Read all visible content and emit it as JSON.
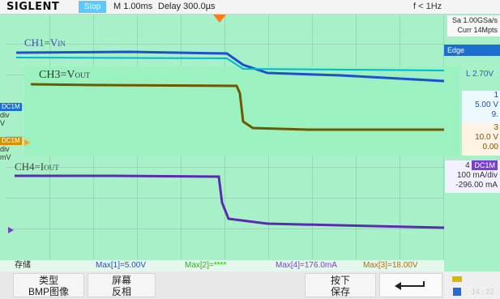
{
  "brand": "SIGLENT",
  "run_state": "Stop",
  "timebase": "M 1.00ms",
  "delay": "Delay 300.0µs",
  "frequency": "f < 1Hz",
  "sample_rate": "Sa 1.00GSa/s",
  "memory_depth": "Curr 14Mpts",
  "trigger": {
    "mode": "Edge",
    "level": "L  2.70V"
  },
  "labels": {
    "vin": "CH1=V",
    "vin_sub": "IN",
    "vout": "CH3=V",
    "vout_sub": "OUT",
    "iout": "CH4=I",
    "iout_sub": "OUT"
  },
  "left_markers": [
    {
      "tag": "DC1M",
      "line1": "div",
      "line2": "V"
    },
    {
      "tag": "DC1M",
      "line1": "div",
      "line2": "mV"
    }
  ],
  "channels": {
    "ch1": {
      "num": "1",
      "scale": "5.00 V",
      "offset": "9."
    },
    "ch3": {
      "num": "3",
      "scale": "10.0 V",
      "offset": "0.00"
    },
    "ch4": {
      "num": "4",
      "coupling": "DC1M",
      "scale": "100 mA/div",
      "offset": "-296.00 mA"
    }
  },
  "measurements": {
    "save_label": "存储",
    "max1": "Max[1]=5.00V",
    "max2": "Max[2]=****",
    "max4": "Max[4]=176.0mA",
    "max3": "Max[3]=18.00V"
  },
  "menu": {
    "type_label": "类型",
    "type_value": "BMP图像",
    "screen_label": "屏幕",
    "screen_value": "反相",
    "press_label": "按下",
    "press_value": "保存"
  },
  "clock": "14 : 22",
  "colors": {
    "ch1": "#1f4fd0",
    "ch3": "#6b5a00",
    "ch4": "#5a2bb0",
    "trigger": "#ff7a1a",
    "background": "#a8f0c8"
  },
  "icons": [
    "trigger-position-icon",
    "back-arrow-icon",
    "usb-icon",
    "network-icon"
  ]
}
